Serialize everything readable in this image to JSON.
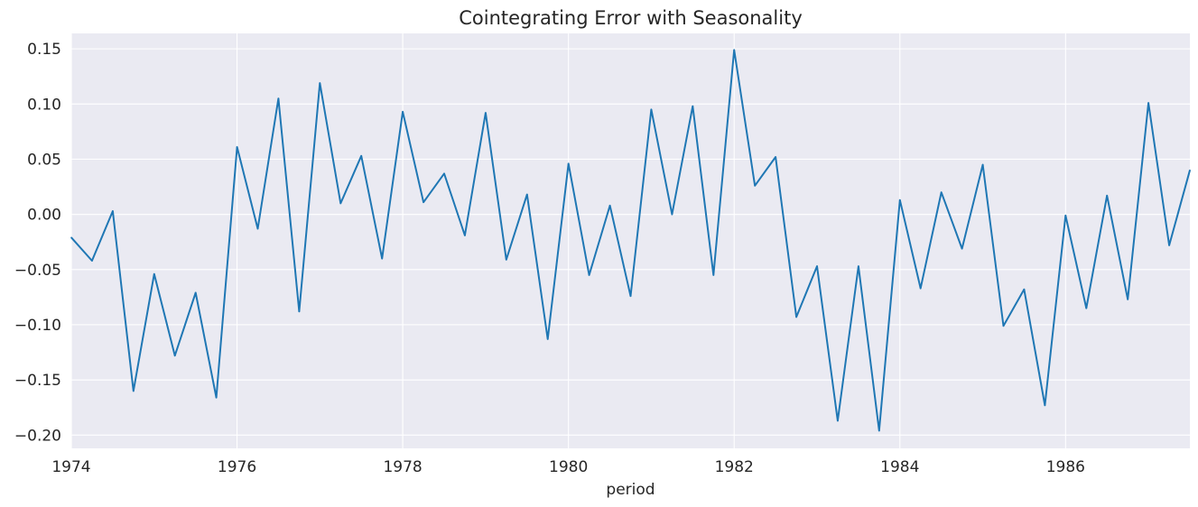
{
  "chart_data": {
    "type": "line",
    "title": "Cointegrating Error with Seasonality",
    "xlabel": "period",
    "ylabel": "",
    "xlim": [
      1974.0,
      1987.5
    ],
    "ylim": [
      -0.212,
      0.164
    ],
    "grid": true,
    "legend": "none",
    "x_ticks": [
      1974,
      1976,
      1978,
      1980,
      1982,
      1984,
      1986
    ],
    "x_tick_labels": [
      "1974",
      "1976",
      "1978",
      "1980",
      "1982",
      "1984",
      "1986"
    ],
    "y_ticks": [
      0.15,
      0.1,
      0.05,
      0.0,
      -0.05,
      -0.1,
      -0.15,
      -0.2
    ],
    "y_tick_labels": [
      "0.15",
      "0.10",
      "0.05",
      "0.00",
      "−0.05",
      "−0.10",
      "−0.15",
      "−0.20"
    ],
    "colors": {
      "background": "#eaeaf2",
      "grid": "#ffffff",
      "line": "#1f77b4",
      "text": "#262626"
    },
    "series": [
      {
        "x": [
          1974.0,
          1974.25,
          1974.5,
          1974.75,
          1975.0,
          1975.25,
          1975.5,
          1975.75,
          1976.0,
          1976.25,
          1976.5,
          1976.75,
          1977.0,
          1977.25,
          1977.5,
          1977.75,
          1978.0,
          1978.25,
          1978.5,
          1978.75,
          1979.0,
          1979.25,
          1979.5,
          1979.75,
          1980.0,
          1980.25,
          1980.5,
          1980.75,
          1981.0,
          1981.25,
          1981.5,
          1981.75,
          1982.0,
          1982.25,
          1982.5,
          1982.75,
          1983.0,
          1983.25,
          1983.5,
          1983.75,
          1984.0,
          1984.25,
          1984.5,
          1984.75,
          1985.0,
          1985.25,
          1985.5,
          1985.75,
          1986.0,
          1986.25,
          1986.5,
          1986.75,
          1987.0,
          1987.25,
          1987.5
        ],
        "values": [
          -0.021,
          -0.042,
          0.003,
          -0.16,
          -0.054,
          -0.128,
          -0.071,
          -0.166,
          0.061,
          -0.013,
          0.105,
          -0.088,
          0.119,
          0.01,
          0.053,
          -0.04,
          0.093,
          0.011,
          0.037,
          -0.019,
          0.092,
          -0.041,
          0.018,
          -0.113,
          0.046,
          -0.055,
          0.008,
          -0.074,
          0.095,
          0.0,
          0.098,
          -0.055,
          0.149,
          0.026,
          0.052,
          -0.093,
          -0.047,
          -0.187,
          -0.047,
          -0.196,
          0.013,
          -0.067,
          0.02,
          -0.031,
          0.045,
          -0.101,
          -0.068,
          -0.173,
          -0.001,
          -0.085,
          0.017,
          -0.077,
          0.101,
          -0.028,
          0.04
        ]
      }
    ]
  }
}
